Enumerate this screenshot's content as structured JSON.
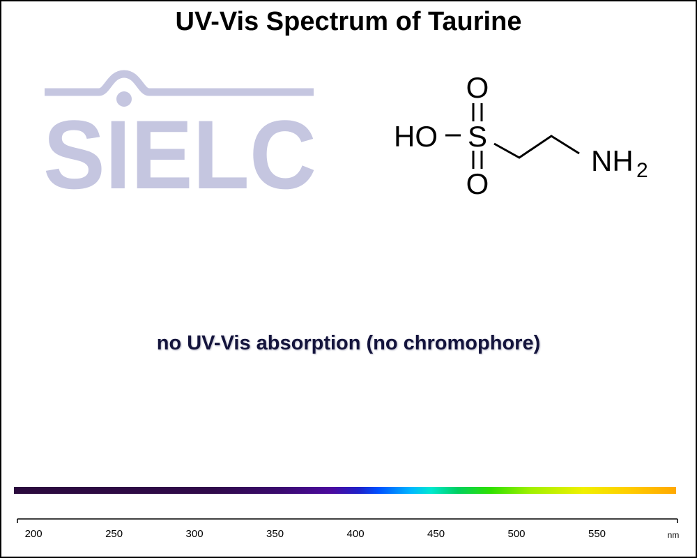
{
  "page": {
    "title": "UV-Vis Spectrum of Taurine",
    "logo_text": "SIELC",
    "note": "no UV-Vis absorption (no chromophore)",
    "colors": {
      "logo": "#c5c6e0",
      "note": "#14143c",
      "frame": "#000000"
    }
  },
  "molecule": {
    "labels": {
      "ho": "HO",
      "s": "S",
      "o_top": "O",
      "o_bottom": "O",
      "nh": "NH",
      "sub2": "2"
    }
  },
  "chart_data": {
    "type": "line",
    "title": "UV-Vis Spectrum of Taurine",
    "annotation": "no UV-Vis absorption (no chromophore)",
    "x_ticks": [
      200,
      250,
      300,
      350,
      400,
      450,
      500,
      550
    ],
    "xlim": [
      190,
      600
    ],
    "xlabel": "nm",
    "series": [],
    "grid": false,
    "legend": "none"
  }
}
